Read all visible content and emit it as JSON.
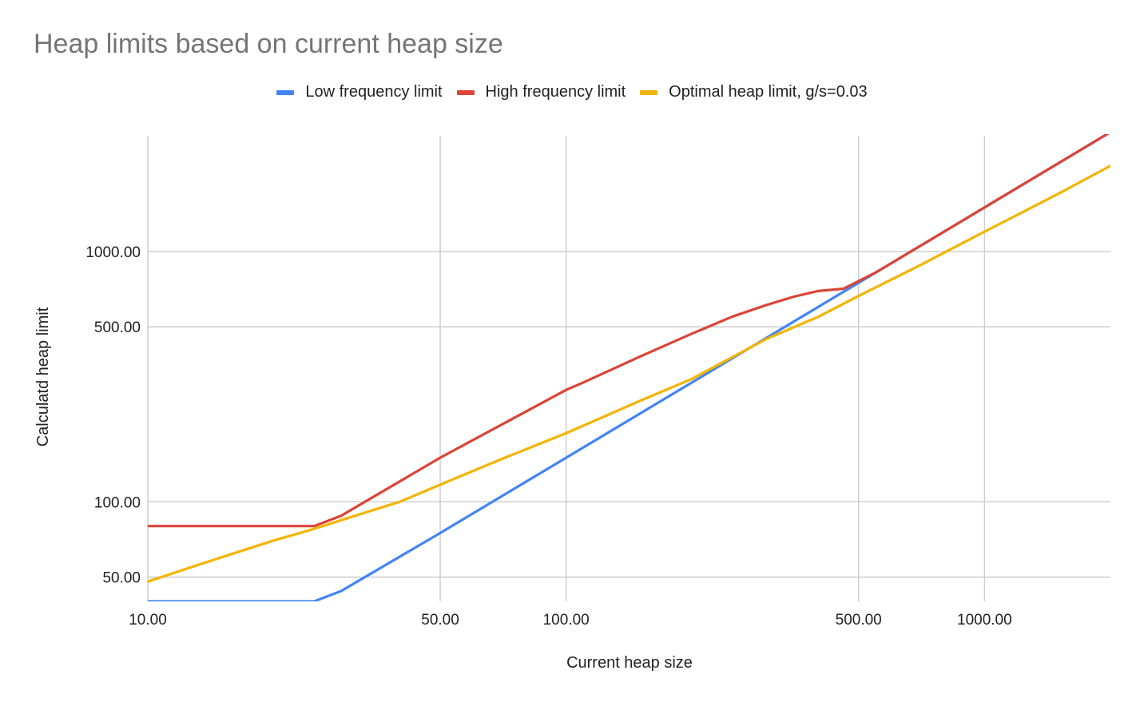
{
  "chart_data": {
    "type": "line",
    "title": "Heap limits based on current heap size",
    "xlabel": "Current heap size",
    "ylabel": "Calculatd heap limit",
    "x_scale": "log",
    "y_scale": "log",
    "xlim": [
      10,
      2000
    ],
    "ylim": [
      40,
      2900
    ],
    "x_ticks": [
      10,
      50,
      100,
      500,
      1000
    ],
    "x_tick_labels": [
      "10.00",
      "50.00",
      "100.00",
      "500.00",
      "1000.00"
    ],
    "y_ticks": [
      50,
      100,
      500,
      1000
    ],
    "y_tick_labels": [
      "50.00",
      "100.00",
      "500.00",
      "1000.00"
    ],
    "grid": true,
    "legend_position": "top",
    "series": [
      {
        "name": "Low frequency limit",
        "color": "#4285f4",
        "points": [
          [
            10,
            40
          ],
          [
            25,
            40
          ],
          [
            29,
            44
          ],
          [
            50,
            75
          ],
          [
            100,
            150
          ],
          [
            300,
            450
          ],
          [
            550,
            825
          ],
          [
            1000,
            1500
          ],
          [
            2000,
            3000
          ]
        ]
      },
      {
        "name": "High frequency limit",
        "color": "#db4437",
        "points": [
          [
            10,
            80
          ],
          [
            25,
            80
          ],
          [
            29,
            88
          ],
          [
            50,
            150
          ],
          [
            100,
            280
          ],
          [
            110,
            300
          ],
          [
            150,
            380
          ],
          [
            200,
            470
          ],
          [
            250,
            550
          ],
          [
            300,
            610
          ],
          [
            350,
            660
          ],
          [
            400,
            695
          ],
          [
            460,
            710
          ],
          [
            550,
            825
          ],
          [
            1000,
            1500
          ],
          [
            2000,
            3000
          ]
        ]
      },
      {
        "name": "Optimal heap limit, g/s=0.03",
        "color": "#f4b400",
        "points": [
          [
            10,
            48
          ],
          [
            15,
            60
          ],
          [
            20,
            70
          ],
          [
            25,
            78
          ],
          [
            30,
            86
          ],
          [
            40,
            100
          ],
          [
            50,
            117
          ],
          [
            70,
            148
          ],
          [
            100,
            188
          ],
          [
            150,
            253
          ],
          [
            200,
            310
          ],
          [
            300,
            446
          ],
          [
            400,
            548
          ],
          [
            500,
            664
          ],
          [
            700,
            880
          ],
          [
            1000,
            1200
          ],
          [
            1500,
            1700
          ],
          [
            2000,
            2200
          ]
        ]
      }
    ]
  }
}
